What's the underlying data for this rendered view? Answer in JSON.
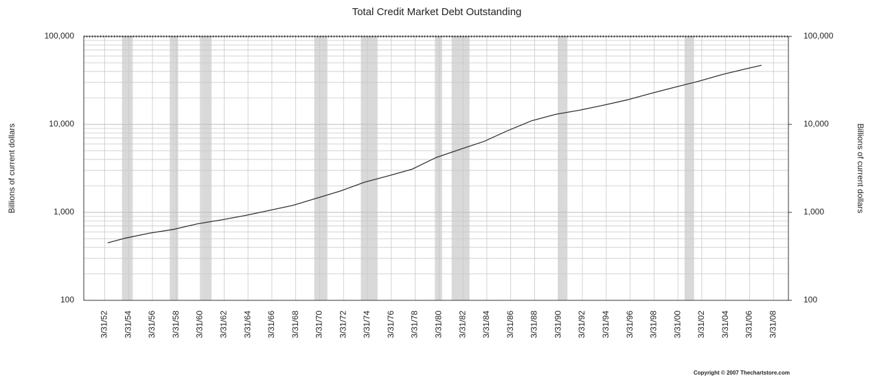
{
  "chart_data": {
    "type": "line",
    "title": "Total Credit Market Debt Outstanding",
    "ylabel": "Billions of current dollars",
    "y2label": "Billions of current dollars",
    "footnote": "Copyright © 2007 Thechartstore.com",
    "log_y": true,
    "grid": true,
    "xlim": [
      1950.5,
      2009.5
    ],
    "xticks": [
      {
        "value": 1952.25,
        "label": "3/31/52"
      },
      {
        "value": 1954.25,
        "label": "3/31/54"
      },
      {
        "value": 1956.25,
        "label": "3/31/56"
      },
      {
        "value": 1958.25,
        "label": "3/31/58"
      },
      {
        "value": 1960.25,
        "label": "3/31/60"
      },
      {
        "value": 1962.25,
        "label": "3/31/62"
      },
      {
        "value": 1964.25,
        "label": "3/31/64"
      },
      {
        "value": 1966.25,
        "label": "3/31/66"
      },
      {
        "value": 1968.25,
        "label": "3/31/68"
      },
      {
        "value": 1970.25,
        "label": "3/31/70"
      },
      {
        "value": 1972.25,
        "label": "3/31/72"
      },
      {
        "value": 1974.25,
        "label": "3/31/74"
      },
      {
        "value": 1976.25,
        "label": "3/31/76"
      },
      {
        "value": 1978.25,
        "label": "3/31/78"
      },
      {
        "value": 1980.25,
        "label": "3/31/80"
      },
      {
        "value": 1982.25,
        "label": "3/31/82"
      },
      {
        "value": 1984.25,
        "label": "3/31/84"
      },
      {
        "value": 1986.25,
        "label": "3/31/86"
      },
      {
        "value": 1988.25,
        "label": "3/31/88"
      },
      {
        "value": 1990.25,
        "label": "3/31/90"
      },
      {
        "value": 1992.25,
        "label": "3/31/92"
      },
      {
        "value": 1994.25,
        "label": "3/31/94"
      },
      {
        "value": 1996.25,
        "label": "3/31/96"
      },
      {
        "value": 1998.25,
        "label": "3/31/98"
      },
      {
        "value": 2000.25,
        "label": "3/31/00"
      },
      {
        "value": 2002.25,
        "label": "3/31/02"
      },
      {
        "value": 2004.25,
        "label": "3/31/04"
      },
      {
        "value": 2006.25,
        "label": "3/31/06"
      },
      {
        "value": 2008.25,
        "label": "3/31/08"
      }
    ],
    "ylim": [
      100,
      100000
    ],
    "yticks": [
      100,
      {
        "value": 1000,
        "label": "1,000"
      },
      {
        "value": 10000,
        "label": "10,000"
      },
      {
        "value": 100000,
        "label": "100,000"
      }
    ],
    "y2lim": [
      100,
      100000
    ],
    "y2ticks": [
      100,
      {
        "value": 1000,
        "label": "1,000"
      },
      {
        "value": 10000,
        "label": "10,000"
      },
      {
        "value": 100000,
        "label": "100,000"
      }
    ],
    "minor_yticks": [
      200,
      300,
      400,
      500,
      600,
      700,
      800,
      900,
      2000,
      3000,
      4000,
      5000,
      6000,
      7000,
      8000,
      9000,
      20000,
      30000,
      40000,
      50000,
      60000,
      70000,
      80000,
      90000
    ],
    "shaded_periods": [
      [
        1953.7,
        1954.6
      ],
      [
        1957.7,
        1958.4
      ],
      [
        1960.3,
        1961.2
      ],
      [
        1969.8,
        1970.9
      ],
      [
        1973.7,
        1975.1
      ],
      [
        1979.9,
        1980.5
      ],
      [
        1981.3,
        1982.8
      ],
      [
        1990.2,
        1991.0
      ],
      [
        2000.8,
        2001.6
      ]
    ],
    "shade_color": "#d9d9d9",
    "x": [
      1952.5,
      1954,
      1956,
      1958,
      1960,
      1962,
      1964,
      1966,
      1968,
      1970,
      1972,
      1974,
      1976,
      1978,
      1980,
      1982,
      1984,
      1986,
      1988,
      1990,
      1992,
      1994,
      1996,
      1998,
      2000,
      2002,
      2004,
      2006,
      2007.25
    ],
    "series": [
      {
        "name": "Total Credit Market Debt",
        "color": "#333333",
        "values": [
          450,
          510,
          580,
          640,
          740,
          820,
          920,
          1050,
          1200,
          1450,
          1750,
          2200,
          2600,
          3100,
          4200,
          5200,
          6400,
          8500,
          11000,
          13000,
          14500,
          16500,
          19000,
          22500,
          26500,
          31000,
          37000,
          43000,
          47000
        ]
      }
    ]
  }
}
